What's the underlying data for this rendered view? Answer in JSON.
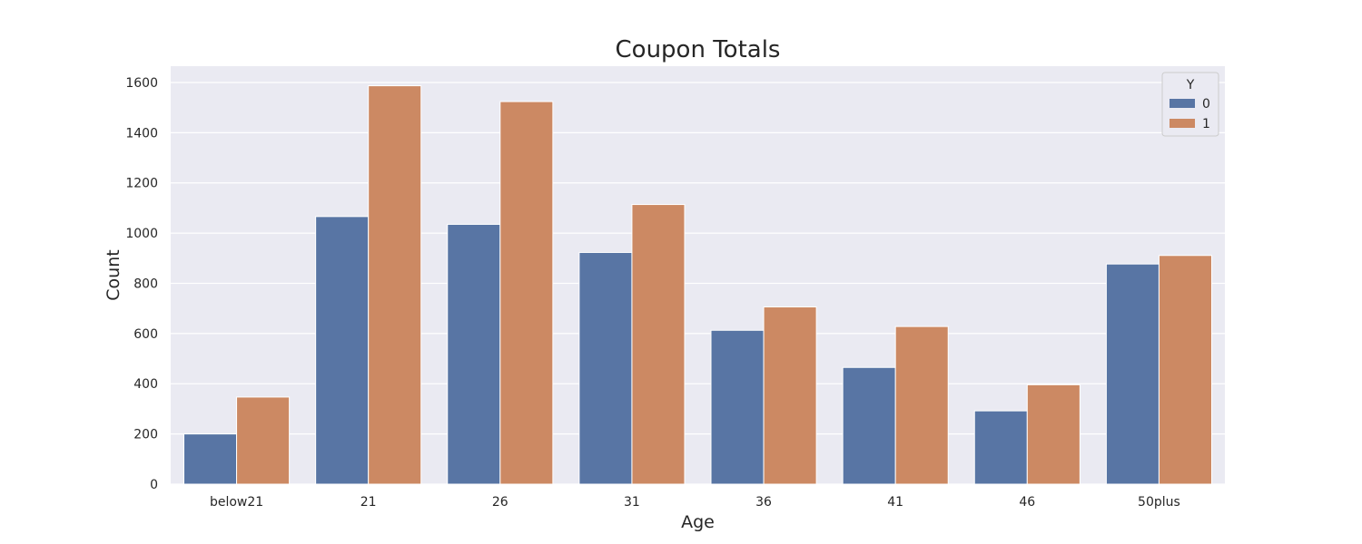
{
  "chart_data": {
    "type": "bar",
    "title": "Coupon Totals",
    "xlabel": "Age",
    "ylabel": "Count",
    "categories": [
      "below21",
      "21",
      "26",
      "31",
      "36",
      "41",
      "46",
      "50plus"
    ],
    "series": [
      {
        "name": "0",
        "values": [
          200,
          1066,
          1035,
          923,
          613,
          465,
          292,
          877
        ],
        "color": "#5875a4"
      },
      {
        "name": "1",
        "values": [
          347,
          1587,
          1524,
          1114,
          706,
          628,
          396,
          911
        ],
        "color": "#cc8963"
      }
    ],
    "ylim": [
      0,
      1665
    ],
    "yticks": [
      0,
      200,
      400,
      600,
      800,
      1000,
      1200,
      1400,
      1600
    ],
    "grid": true,
    "legend": {
      "title": "Y",
      "placement": "top-right"
    },
    "colors": {
      "plot_background": "#eaeaf2",
      "grid": "#ffffff"
    }
  }
}
